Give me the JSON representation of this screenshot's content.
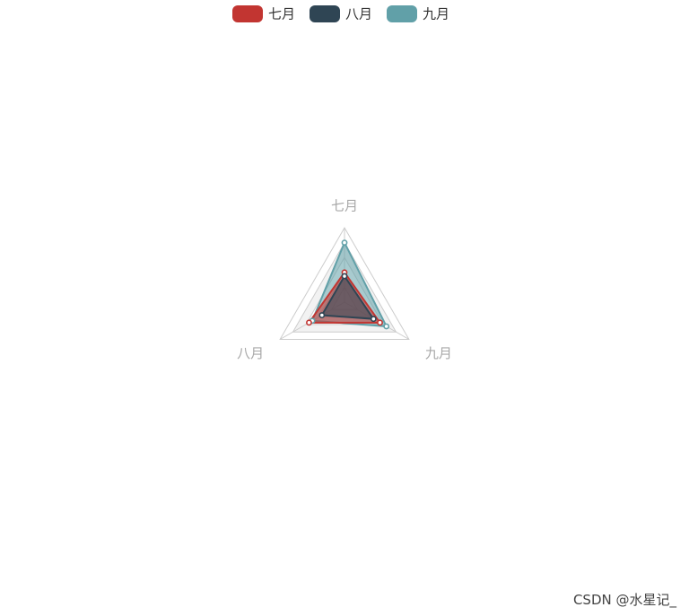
{
  "chart_data": {
    "type": "radar",
    "indicators": [
      "七月",
      "八月",
      "九月"
    ],
    "max": 100,
    "legend_position": "top-center",
    "series": [
      {
        "name": "七月",
        "color": "#c23531",
        "values": [
          40,
          55,
          55
        ]
      },
      {
        "name": "八月",
        "color": "#2f4554",
        "values": [
          35,
          35,
          45
        ]
      },
      {
        "name": "九月",
        "color": "#61a0a8",
        "values": [
          80,
          50,
          65
        ]
      }
    ],
    "radar_colors": {
      "axis_line": "#cccccc",
      "split_area_odd": "#ffffff",
      "split_area_even": "#f2f2f2"
    }
  },
  "watermark": "CSDN @水星记_"
}
